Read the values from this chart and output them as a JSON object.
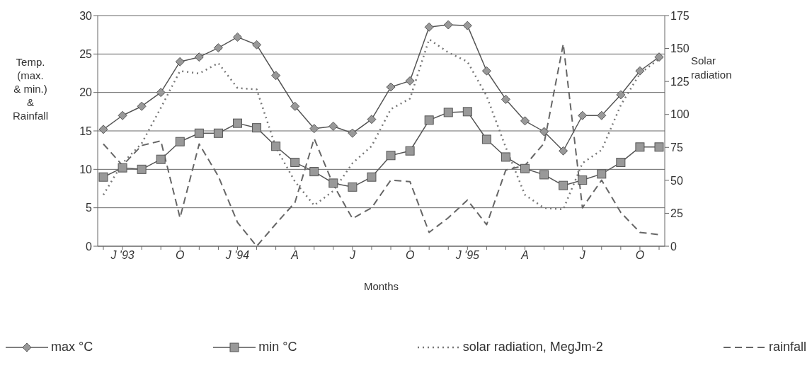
{
  "chart_data": {
    "type": "line",
    "xlabel": "Months",
    "ylabel": "Temp.\n(max.\n& min.)\n&\nRainfall",
    "y2label": "Solar\nradiation",
    "categories": [
      null,
      "J '93",
      null,
      null,
      "O",
      null,
      null,
      "J '94",
      null,
      null,
      "A",
      null,
      null,
      "J",
      null,
      null,
      "O",
      null,
      null,
      "J '95",
      null,
      null,
      "A",
      null,
      null,
      "J",
      null,
      null,
      "O",
      null
    ],
    "series": [
      {
        "name": "max °C",
        "color": "#555555",
        "marker": "diamond",
        "line_style": "solid",
        "values": [
          15.2,
          17,
          18.2,
          20,
          24,
          24.6,
          25.8,
          27.2,
          26.2,
          22.2,
          18.2,
          15.3,
          15.6,
          14.7,
          16.5,
          20.7,
          21.5,
          28.5,
          28.8,
          28.7,
          22.8,
          19.1,
          16.3,
          14.9,
          12.4,
          17,
          17,
          19.7,
          22.8,
          24.6
        ]
      },
      {
        "name": "min °C",
        "color": "#555555",
        "marker": "square",
        "line_style": "solid",
        "values": [
          9,
          10.2,
          10,
          11.3,
          13.6,
          14.7,
          14.7,
          16,
          15.4,
          13,
          10.9,
          9.7,
          8.2,
          7.7,
          9,
          11.8,
          12.4,
          16.4,
          17.4,
          17.5,
          13.9,
          11.6,
          10.1,
          9.3,
          7.9,
          8.6,
          9.4,
          10.9,
          12.9,
          12.9
        ]
      },
      {
        "name": "solar radiation, MegJm-2",
        "color": "#777777",
        "marker": "none",
        "line_style": "dotted",
        "axis": "y2",
        "values": [
          39,
          63,
          78,
          105,
          133,
          131,
          139,
          120,
          119,
          75,
          49,
          31,
          42,
          63,
          76,
          104,
          112,
          157,
          147,
          140,
          114,
          75,
          39,
          29,
          28,
          63,
          73,
          107,
          131,
          142
        ]
      },
      {
        "name": "rainfall",
        "color": "#666666",
        "marker": "none",
        "line_style": "dashed",
        "values": [
          13.3,
          10.5,
          13.1,
          13.7,
          3.7,
          13.3,
          9.1,
          3.1,
          0,
          2.9,
          5.7,
          14,
          8,
          3.6,
          5,
          8.6,
          8.4,
          1.8,
          3.7,
          6,
          2.8,
          9.9,
          10.5,
          13.4,
          26.3,
          5,
          8.6,
          4.4,
          1.8,
          1.5
        ]
      }
    ],
    "ylim": [
      0,
      30
    ],
    "yticks": [
      0,
      5,
      10,
      15,
      20,
      25,
      30
    ],
    "y2lim": [
      0,
      175
    ],
    "y2ticks": [
      0,
      25,
      50,
      75,
      100,
      125,
      150,
      175
    ],
    "grid": "y",
    "legend": "bottom"
  }
}
